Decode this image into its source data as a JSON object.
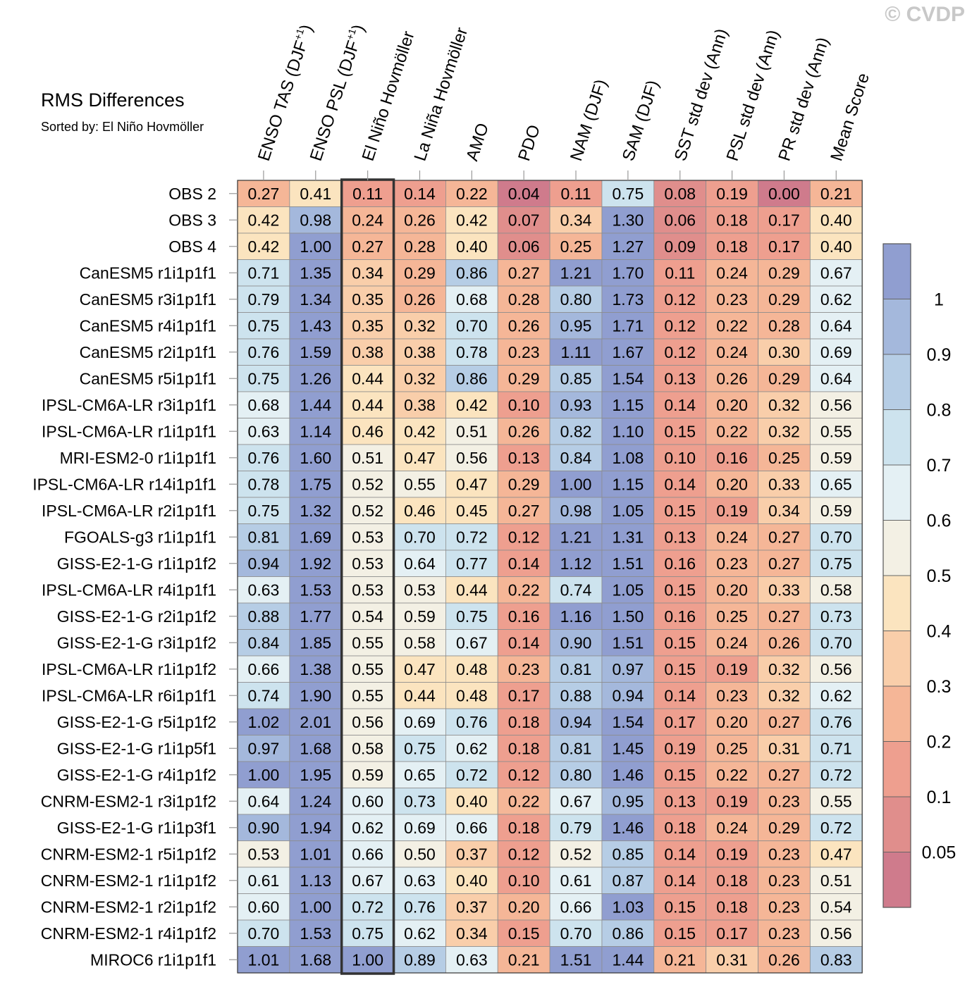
{
  "watermark": "© CVDP",
  "chart_data": {
    "type": "heatmap",
    "title": "RMS Differences",
    "subtitle": "Sorted by: El Niño Hovmöller",
    "highlight_column": 2,
    "columns": [
      {
        "label": "ENSO TAS (DJF",
        "sup": "+1",
        "tail": ")"
      },
      {
        "label": "ENSO PSL (DJF",
        "sup": "+1",
        "tail": ")"
      },
      {
        "label": "El Niño Hovmöller"
      },
      {
        "label": "La Niña Hovmöller"
      },
      {
        "label": "AMO"
      },
      {
        "label": "PDO"
      },
      {
        "label": "NAM (DJF)"
      },
      {
        "label": "SAM (DJF)"
      },
      {
        "label": "SST std dev (Ann)"
      },
      {
        "label": "PSL std dev (Ann)"
      },
      {
        "label": "PR std dev (Ann)"
      },
      {
        "label": "Mean Score"
      }
    ],
    "rows": [
      "OBS 2",
      "OBS 3",
      "OBS 4",
      "CanESM5 r1i1p1f1",
      "CanESM5 r3i1p1f1",
      "CanESM5 r4i1p1f1",
      "CanESM5 r2i1p1f1",
      "CanESM5 r5i1p1f1",
      "IPSL-CM6A-LR r3i1p1f1",
      "IPSL-CM6A-LR r1i1p1f1",
      "MRI-ESM2-0 r1i1p1f1",
      "IPSL-CM6A-LR r14i1p1f1",
      "IPSL-CM6A-LR r2i1p1f1",
      "FGOALS-g3 r1i1p1f1",
      "GISS-E2-1-G r1i1p1f2",
      "IPSL-CM6A-LR r4i1p1f1",
      "GISS-E2-1-G r2i1p1f2",
      "GISS-E2-1-G r3i1p1f2",
      "IPSL-CM6A-LR r1i1p1f2",
      "IPSL-CM6A-LR r6i1p1f1",
      "GISS-E2-1-G r5i1p1f2",
      "GISS-E2-1-G r1i1p5f1",
      "GISS-E2-1-G r4i1p1f2",
      "CNRM-ESM2-1 r3i1p1f2",
      "GISS-E2-1-G r1i1p3f1",
      "CNRM-ESM2-1 r5i1p1f2",
      "CNRM-ESM2-1 r1i1p1f2",
      "CNRM-ESM2-1 r2i1p1f2",
      "CNRM-ESM2-1 r4i1p1f2",
      "MIROC6 r1i1p1f1"
    ],
    "values": [
      [
        "0.27",
        "0.41",
        "0.11",
        "0.14",
        "0.22",
        "0.04",
        "0.11",
        "0.75",
        "0.08",
        "0.19",
        "0.00",
        "0.21"
      ],
      [
        "0.42",
        "0.98",
        "0.24",
        "0.26",
        "0.42",
        "0.07",
        "0.34",
        "1.30",
        "0.06",
        "0.18",
        "0.17",
        "0.40"
      ],
      [
        "0.42",
        "1.00",
        "0.27",
        "0.28",
        "0.40",
        "0.06",
        "0.25",
        "1.27",
        "0.09",
        "0.18",
        "0.17",
        "0.40"
      ],
      [
        "0.71",
        "1.35",
        "0.34",
        "0.29",
        "0.86",
        "0.27",
        "1.21",
        "1.70",
        "0.11",
        "0.24",
        "0.29",
        "0.67"
      ],
      [
        "0.79",
        "1.34",
        "0.35",
        "0.26",
        "0.68",
        "0.28",
        "0.80",
        "1.73",
        "0.12",
        "0.23",
        "0.29",
        "0.62"
      ],
      [
        "0.75",
        "1.43",
        "0.35",
        "0.32",
        "0.70",
        "0.26",
        "0.95",
        "1.71",
        "0.12",
        "0.22",
        "0.28",
        "0.64"
      ],
      [
        "0.76",
        "1.59",
        "0.38",
        "0.38",
        "0.78",
        "0.23",
        "1.11",
        "1.67",
        "0.12",
        "0.24",
        "0.30",
        "0.69"
      ],
      [
        "0.75",
        "1.26",
        "0.44",
        "0.32",
        "0.86",
        "0.29",
        "0.85",
        "1.54",
        "0.13",
        "0.26",
        "0.29",
        "0.64"
      ],
      [
        "0.68",
        "1.44",
        "0.44",
        "0.38",
        "0.42",
        "0.10",
        "0.93",
        "1.15",
        "0.14",
        "0.20",
        "0.32",
        "0.56"
      ],
      [
        "0.63",
        "1.14",
        "0.46",
        "0.42",
        "0.51",
        "0.26",
        "0.82",
        "1.10",
        "0.15",
        "0.22",
        "0.32",
        "0.55"
      ],
      [
        "0.76",
        "1.60",
        "0.51",
        "0.47",
        "0.56",
        "0.13",
        "0.84",
        "1.08",
        "0.10",
        "0.16",
        "0.25",
        "0.59"
      ],
      [
        "0.78",
        "1.75",
        "0.52",
        "0.55",
        "0.47",
        "0.29",
        "1.00",
        "1.15",
        "0.14",
        "0.20",
        "0.33",
        "0.65"
      ],
      [
        "0.75",
        "1.32",
        "0.52",
        "0.46",
        "0.45",
        "0.27",
        "0.98",
        "1.05",
        "0.15",
        "0.19",
        "0.34",
        "0.59"
      ],
      [
        "0.81",
        "1.69",
        "0.53",
        "0.70",
        "0.72",
        "0.12",
        "1.21",
        "1.31",
        "0.13",
        "0.24",
        "0.27",
        "0.70"
      ],
      [
        "0.94",
        "1.92",
        "0.53",
        "0.64",
        "0.77",
        "0.14",
        "1.12",
        "1.51",
        "0.16",
        "0.23",
        "0.27",
        "0.75"
      ],
      [
        "0.63",
        "1.53",
        "0.53",
        "0.53",
        "0.44",
        "0.22",
        "0.74",
        "1.05",
        "0.15",
        "0.20",
        "0.33",
        "0.58"
      ],
      [
        "0.88",
        "1.77",
        "0.54",
        "0.59",
        "0.75",
        "0.16",
        "1.16",
        "1.50",
        "0.16",
        "0.25",
        "0.27",
        "0.73"
      ],
      [
        "0.84",
        "1.85",
        "0.55",
        "0.58",
        "0.67",
        "0.14",
        "0.90",
        "1.51",
        "0.15",
        "0.24",
        "0.26",
        "0.70"
      ],
      [
        "0.66",
        "1.38",
        "0.55",
        "0.47",
        "0.48",
        "0.23",
        "0.81",
        "0.97",
        "0.15",
        "0.19",
        "0.32",
        "0.56"
      ],
      [
        "0.74",
        "1.90",
        "0.55",
        "0.44",
        "0.48",
        "0.17",
        "0.88",
        "0.94",
        "0.14",
        "0.23",
        "0.32",
        "0.62"
      ],
      [
        "1.02",
        "2.01",
        "0.56",
        "0.69",
        "0.76",
        "0.18",
        "0.94",
        "1.54",
        "0.17",
        "0.20",
        "0.27",
        "0.76"
      ],
      [
        "0.97",
        "1.68",
        "0.58",
        "0.75",
        "0.62",
        "0.18",
        "0.81",
        "1.45",
        "0.19",
        "0.25",
        "0.31",
        "0.71"
      ],
      [
        "1.00",
        "1.95",
        "0.59",
        "0.65",
        "0.72",
        "0.12",
        "0.80",
        "1.46",
        "0.15",
        "0.22",
        "0.27",
        "0.72"
      ],
      [
        "0.64",
        "1.24",
        "0.60",
        "0.73",
        "0.40",
        "0.22",
        "0.67",
        "0.95",
        "0.13",
        "0.19",
        "0.23",
        "0.55"
      ],
      [
        "0.90",
        "1.94",
        "0.62",
        "0.69",
        "0.66",
        "0.18",
        "0.79",
        "1.46",
        "0.18",
        "0.24",
        "0.29",
        "0.72"
      ],
      [
        "0.53",
        "1.01",
        "0.66",
        "0.50",
        "0.37",
        "0.12",
        "0.52",
        "0.85",
        "0.14",
        "0.19",
        "0.23",
        "0.47"
      ],
      [
        "0.61",
        "1.13",
        "0.67",
        "0.63",
        "0.40",
        "0.10",
        "0.61",
        "0.87",
        "0.14",
        "0.18",
        "0.23",
        "0.51"
      ],
      [
        "0.60",
        "1.00",
        "0.72",
        "0.76",
        "0.37",
        "0.20",
        "0.66",
        "1.03",
        "0.15",
        "0.18",
        "0.23",
        "0.54"
      ],
      [
        "0.70",
        "1.53",
        "0.75",
        "0.62",
        "0.34",
        "0.15",
        "0.70",
        "0.86",
        "0.15",
        "0.17",
        "0.23",
        "0.56"
      ],
      [
        "1.01",
        "1.68",
        "1.00",
        "0.89",
        "0.63",
        "0.21",
        "1.51",
        "1.44",
        "0.21",
        "0.31",
        "0.26",
        "0.83"
      ]
    ],
    "colorbar": {
      "thresholds": [
        0.05,
        0.1,
        0.2,
        0.3,
        0.4,
        0.5,
        0.6,
        0.7,
        0.8,
        0.9,
        1
      ],
      "tick_labels": [
        "0.05",
        "0.1",
        "0.2",
        "0.3",
        "0.4",
        "0.5",
        "0.6",
        "0.7",
        "0.8",
        "0.9",
        "1"
      ],
      "colors": [
        "#cf7b8c",
        "#e08e8c",
        "#ee9f8f",
        "#f5b697",
        "#f9ceaa",
        "#fbe4bf",
        "#f3f0e4",
        "#e4f0f4",
        "#cde3ee",
        "#b6cde5",
        "#a4b8dc",
        "#909ed0"
      ]
    }
  }
}
